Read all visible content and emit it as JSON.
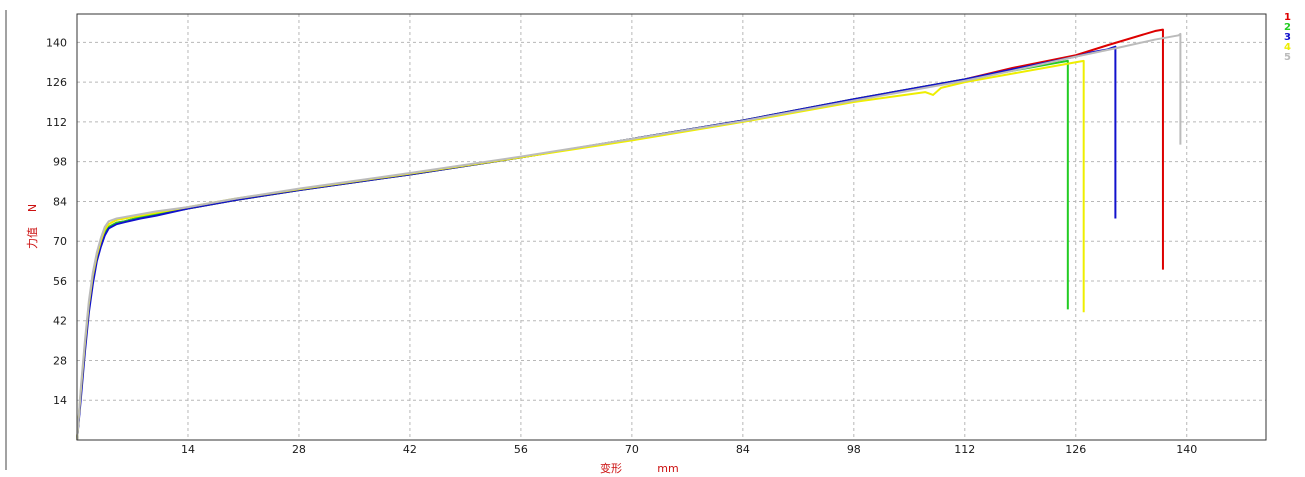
{
  "chart_data": {
    "type": "line",
    "title": "",
    "xlabel": "变形",
    "xunit": "mm",
    "ylabel": "力值",
    "yunit": "N",
    "xlim": [
      0,
      150
    ],
    "ylim": [
      0,
      150
    ],
    "x_ticks": [
      14,
      28,
      42,
      56,
      70,
      84,
      98,
      112,
      126,
      140
    ],
    "y_ticks": [
      14,
      28,
      42,
      56,
      70,
      84,
      98,
      112,
      126,
      140
    ],
    "grid": true,
    "legend_position": "right",
    "series": [
      {
        "name": "1",
        "color": "#dd0000",
        "points": [
          [
            0,
            0
          ],
          [
            0.5,
            17
          ],
          [
            1,
            33
          ],
          [
            1.5,
            47
          ],
          [
            2,
            57
          ],
          [
            2.5,
            64
          ],
          [
            3,
            69
          ],
          [
            3.5,
            73
          ],
          [
            4,
            75
          ],
          [
            5,
            76.5
          ],
          [
            6,
            77
          ],
          [
            8,
            78.5
          ],
          [
            10,
            79.5
          ],
          [
            14,
            81.5
          ],
          [
            20,
            84.5
          ],
          [
            28,
            88
          ],
          [
            42,
            93.5
          ],
          [
            56,
            99.5
          ],
          [
            70,
            106
          ],
          [
            84,
            112.5
          ],
          [
            98,
            120
          ],
          [
            112,
            127
          ],
          [
            118,
            131
          ],
          [
            126,
            135.5
          ],
          [
            130,
            139
          ],
          [
            136,
            144
          ],
          [
            137,
            144.5
          ],
          [
            137,
            60
          ]
        ]
      },
      {
        "name": "2",
        "color": "#22cc22",
        "points": [
          [
            0,
            0
          ],
          [
            0.5,
            17
          ],
          [
            1,
            33
          ],
          [
            1.5,
            47
          ],
          [
            2,
            57
          ],
          [
            2.5,
            64
          ],
          [
            3,
            69
          ],
          [
            3.5,
            73
          ],
          [
            4,
            75
          ],
          [
            5,
            76.5
          ],
          [
            6,
            77
          ],
          [
            8,
            78.5
          ],
          [
            10,
            79.5
          ],
          [
            14,
            81.5
          ],
          [
            20,
            84.5
          ],
          [
            28,
            88
          ],
          [
            42,
            93.5
          ],
          [
            56,
            99.5
          ],
          [
            70,
            106
          ],
          [
            84,
            112.5
          ],
          [
            98,
            120
          ],
          [
            112,
            127
          ],
          [
            118,
            130
          ],
          [
            124,
            133
          ],
          [
            125,
            133.5
          ],
          [
            125,
            46
          ]
        ]
      },
      {
        "name": "3",
        "color": "#1111cc",
        "points": [
          [
            0,
            0
          ],
          [
            0.5,
            15
          ],
          [
            1,
            31
          ],
          [
            1.5,
            45
          ],
          [
            2,
            55
          ],
          [
            2.5,
            63
          ],
          [
            3,
            68
          ],
          [
            3.5,
            72
          ],
          [
            4,
            74.5
          ],
          [
            5,
            76
          ],
          [
            6,
            76.7
          ],
          [
            8,
            78
          ],
          [
            10,
            79
          ],
          [
            14,
            81.5
          ],
          [
            20,
            84.5
          ],
          [
            28,
            88
          ],
          [
            42,
            93.5
          ],
          [
            56,
            99.5
          ],
          [
            70,
            106
          ],
          [
            84,
            112.5
          ],
          [
            98,
            120
          ],
          [
            112,
            127
          ],
          [
            118,
            130.5
          ],
          [
            126,
            135
          ],
          [
            128,
            136.5
          ],
          [
            129,
            137
          ],
          [
            130,
            137.5
          ],
          [
            131,
            138.5
          ],
          [
            131,
            78
          ]
        ]
      },
      {
        "name": "4",
        "color": "#eeee00",
        "points": [
          [
            0,
            0
          ],
          [
            0.5,
            18
          ],
          [
            1,
            34
          ],
          [
            1.5,
            48
          ],
          [
            2,
            58
          ],
          [
            2.5,
            65
          ],
          [
            3,
            70
          ],
          [
            3.5,
            74
          ],
          [
            4,
            76
          ],
          [
            5,
            77.5
          ],
          [
            6,
            78
          ],
          [
            8,
            79
          ],
          [
            10,
            80
          ],
          [
            14,
            82
          ],
          [
            20,
            85
          ],
          [
            28,
            88.3
          ],
          [
            42,
            93.8
          ],
          [
            56,
            99.5
          ],
          [
            70,
            105.5
          ],
          [
            84,
            112
          ],
          [
            98,
            119
          ],
          [
            107,
            122.5
          ],
          [
            108,
            121.5
          ],
          [
            109,
            124
          ],
          [
            112,
            126
          ],
          [
            118,
            129
          ],
          [
            124,
            132
          ],
          [
            126,
            133
          ],
          [
            127,
            133.5
          ],
          [
            127,
            45
          ]
        ]
      },
      {
        "name": "5",
        "color": "#bbbbbb",
        "points": [
          [
            0,
            0
          ],
          [
            0.5,
            19
          ],
          [
            1,
            35
          ],
          [
            1.5,
            49
          ],
          [
            2,
            59
          ],
          [
            2.5,
            66
          ],
          [
            3,
            71
          ],
          [
            3.5,
            75
          ],
          [
            4,
            77
          ],
          [
            5,
            78
          ],
          [
            6,
            78.5
          ],
          [
            8,
            79.5
          ],
          [
            10,
            80.5
          ],
          [
            14,
            82
          ],
          [
            20,
            85
          ],
          [
            28,
            88.5
          ],
          [
            42,
            94
          ],
          [
            56,
            99.8
          ],
          [
            70,
            106
          ],
          [
            84,
            112.3
          ],
          [
            98,
            119.5
          ],
          [
            112,
            126.5
          ],
          [
            118,
            130
          ],
          [
            126,
            135
          ],
          [
            132,
            138.5
          ],
          [
            136,
            141
          ],
          [
            139,
            142.5
          ],
          [
            139.2,
            143
          ],
          [
            139.2,
            104
          ]
        ]
      }
    ]
  }
}
